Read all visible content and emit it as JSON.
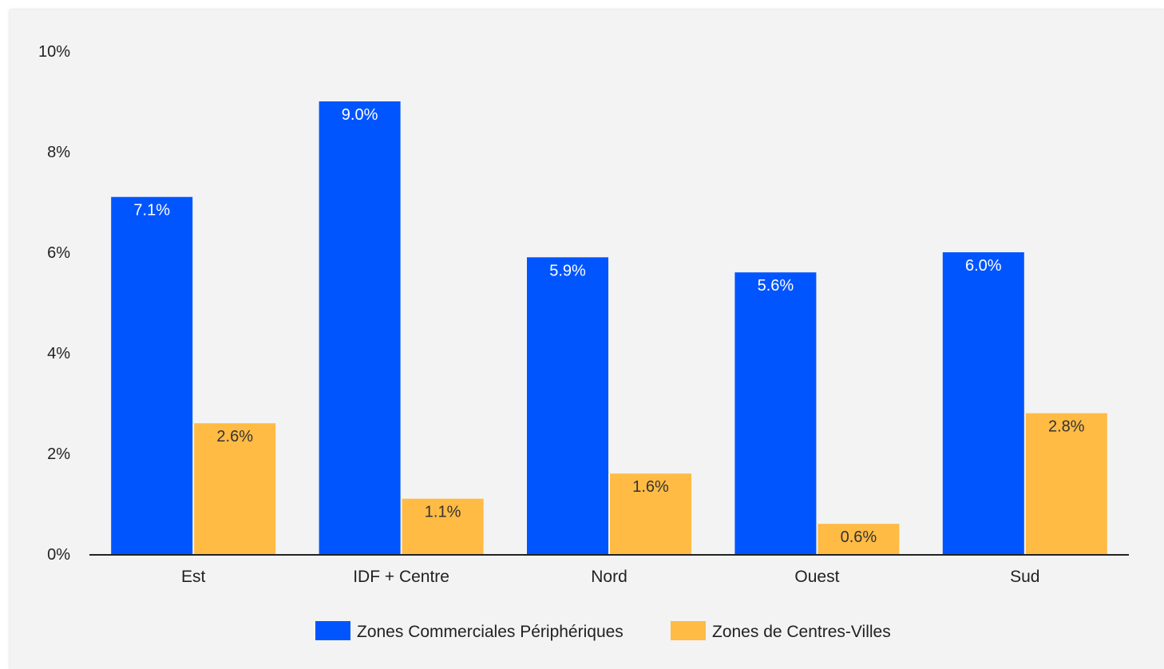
{
  "chart_data": {
    "type": "bar",
    "categories": [
      "Est",
      "IDF + Centre",
      "Nord",
      "Ouest",
      "Sud"
    ],
    "series": [
      {
        "name": "Zones Commerciales Périphériques",
        "color": "#0055ff",
        "values": [
          7.1,
          9.0,
          5.9,
          5.6,
          6.0
        ],
        "labels": [
          "7.1%",
          "9.0%",
          "5.9%",
          "5.6%",
          "6.0%"
        ]
      },
      {
        "name": "Zones de Centres-Villes",
        "color": "#ffbb44",
        "values": [
          2.6,
          1.1,
          1.6,
          0.6,
          2.8
        ],
        "labels": [
          "2.6%",
          "1.1%",
          "1.6%",
          "0.6%",
          "2.8%"
        ]
      }
    ],
    "ylim": [
      0,
      10
    ],
    "yticks": [
      "0%",
      "2%",
      "4%",
      "6%",
      "8%",
      "10%"
    ],
    "grid": false,
    "legend_position": "bottom",
    "xlabel": "",
    "ylabel": ""
  }
}
